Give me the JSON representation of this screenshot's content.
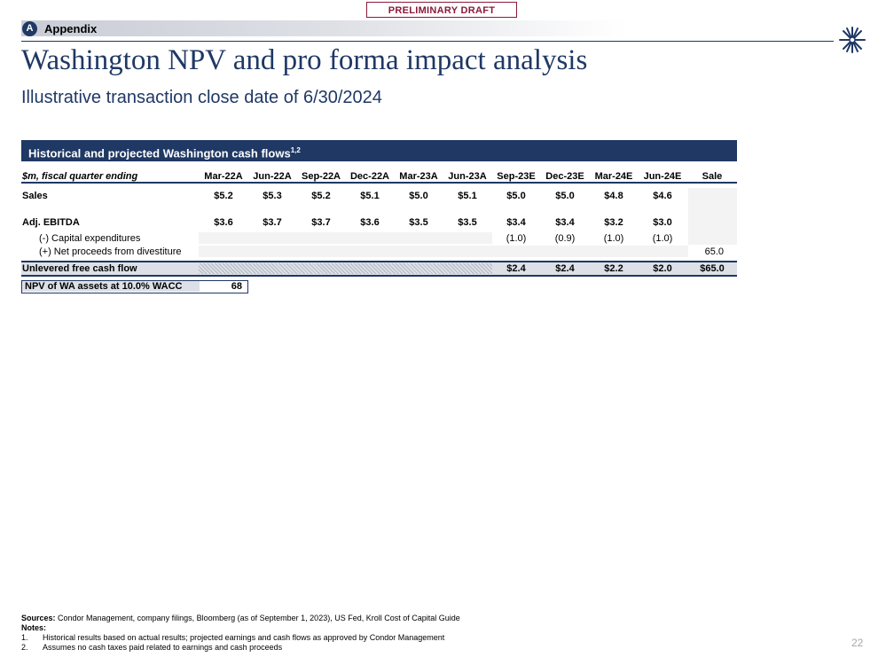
{
  "draft_label": "PRELIMINARY DRAFT",
  "appendix": {
    "badge": "A",
    "label": "Appendix"
  },
  "title": "Washington NPV and pro forma impact analysis",
  "subtitle": "Illustrative transaction close date of 6/30/2024",
  "section": {
    "title": "Historical and projected Washington cash flows",
    "footnote": "1,2"
  },
  "table": {
    "header_label": "$m, fiscal quarter ending",
    "columns": [
      "Mar-22A",
      "Jun-22A",
      "Sep-22A",
      "Dec-22A",
      "Mar-23A",
      "Jun-23A",
      "Sep-23E",
      "Dec-23E",
      "Mar-24E",
      "Jun-24E",
      "Sale"
    ],
    "sales": {
      "label": "Sales",
      "values": [
        "$5.2",
        "$5.3",
        "$5.2",
        "$5.1",
        "$5.0",
        "$5.1",
        "$5.0",
        "$5.0",
        "$4.8",
        "$4.6",
        ""
      ]
    },
    "ebitda": {
      "label": "Adj. EBITDA",
      "values": [
        "$3.6",
        "$3.7",
        "$3.7",
        "$3.6",
        "$3.5",
        "$3.5",
        "$3.4",
        "$3.4",
        "$3.2",
        "$3.0",
        ""
      ]
    },
    "capex": {
      "label": "(-) Capital expenditures",
      "values": [
        "",
        "",
        "",
        "",
        "",
        "",
        "(1.0)",
        "(0.9)",
        "(1.0)",
        "(1.0)",
        ""
      ]
    },
    "proceeds": {
      "label": "(+) Net proceeds from divestiture",
      "values": [
        "",
        "",
        "",
        "",
        "",
        "",
        "",
        "",
        "",
        "",
        "65.0"
      ]
    },
    "ufcf": {
      "label": "Unlevered free cash flow",
      "values": [
        "",
        "",
        "",
        "",
        "",
        "",
        "$2.4",
        "$2.4",
        "$2.2",
        "$2.0",
        "$65.0"
      ]
    }
  },
  "npv": {
    "label": "NPV of WA assets at 10.0% WACC",
    "value": "68"
  },
  "sources": {
    "label": "Sources:",
    "text": "Condor Management, company filings, Bloomberg (as of September 1, 2023), US Fed, Kroll Cost of Capital Guide",
    "notes_label": "Notes:",
    "notes": [
      {
        "num": "1.",
        "text": "Historical results based on actual results; projected earnings and cash flows as approved by Condor Management"
      },
      {
        "num": "2.",
        "text": "Assumes no cash taxes paid related to earnings and cash proceeds"
      }
    ]
  },
  "page_number": "22",
  "colors": {
    "navy": "#1f3864",
    "draft": "#8b1a3a"
  }
}
